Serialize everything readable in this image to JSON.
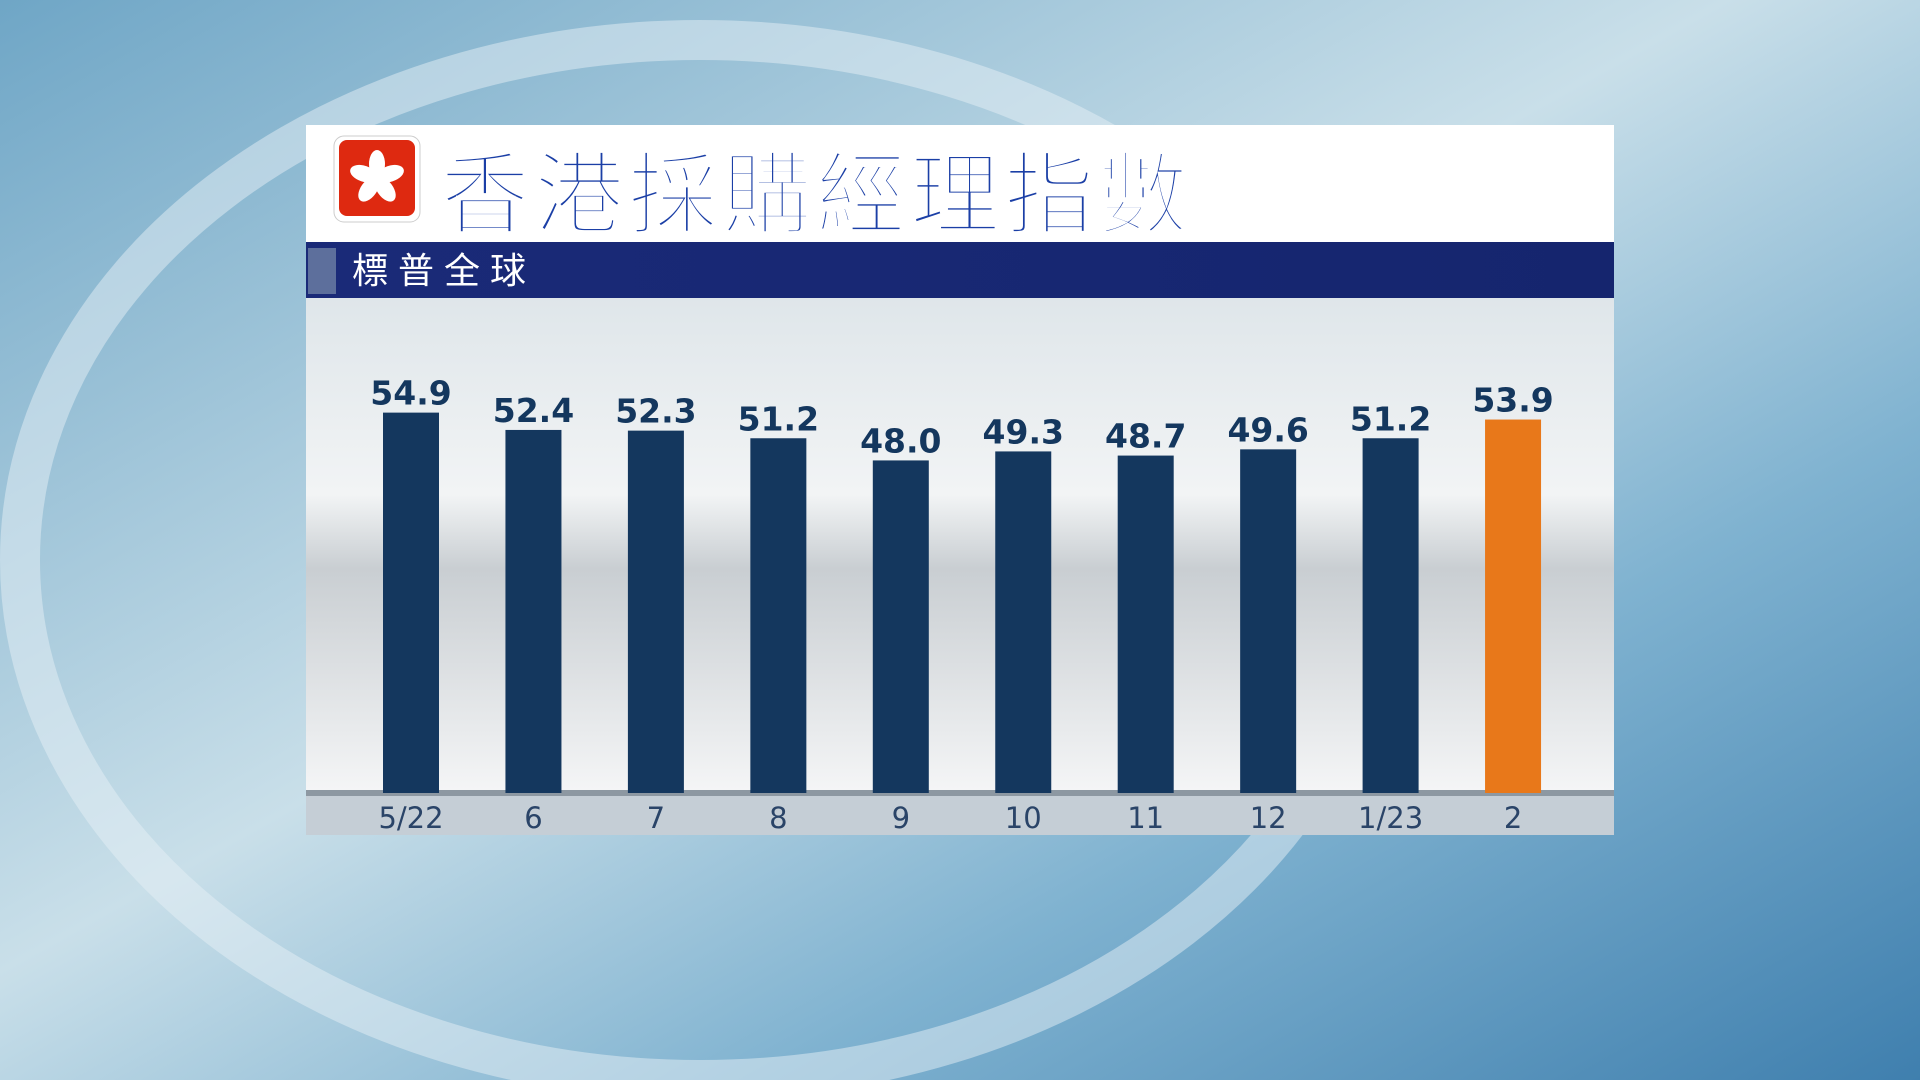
{
  "chart_data": {
    "type": "bar",
    "title": "香港採購經理指數",
    "subtitle": "標普全球",
    "categories": [
      "5/22",
      "6",
      "7",
      "8",
      "9",
      "10",
      "11",
      "12",
      "1/23",
      "2"
    ],
    "values": [
      54.9,
      52.4,
      52.3,
      51.2,
      48.0,
      49.3,
      48.7,
      49.6,
      51.2,
      53.9
    ],
    "value_labels": [
      "54.9",
      "52.4",
      "52.3",
      "51.2",
      "48.0",
      "49.3",
      "48.7",
      "49.6",
      "51.2",
      "53.9"
    ],
    "colors": [
      "#14375e",
      "#14375e",
      "#14375e",
      "#14375e",
      "#14375e",
      "#14375e",
      "#14375e",
      "#14375e",
      "#14375e",
      "#e8781a"
    ],
    "ylim": [
      0,
      70
    ]
  }
}
